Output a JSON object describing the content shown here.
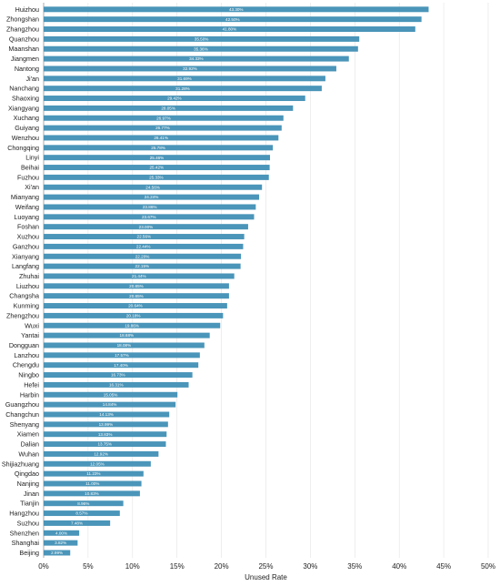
{
  "chart_data": {
    "type": "bar",
    "orientation": "horizontal",
    "title": "",
    "xlabel": "Unused Rate",
    "ylabel": "",
    "xlim": [
      0,
      50
    ],
    "x_ticks": [
      "0%",
      "5%",
      "10%",
      "15%",
      "20%",
      "25%",
      "30%",
      "35%",
      "40%",
      "45%",
      "50%"
    ],
    "grid": true,
    "bar_color": "#4a95b9",
    "categories": [
      "Huizhou",
      "Zhongshan",
      "Zhangzhou",
      "Quanzhou",
      "Maanshan",
      "Jiangmen",
      "Nantong",
      "Ji'an",
      "Nanchang",
      "Shaoxing",
      "Xiangyang",
      "Xuchang",
      "Guiyang",
      "Wenzhou",
      "Chongqing",
      "Linyi",
      "Beihai",
      "Fuzhou",
      "Xi'an",
      "Mianyang",
      "Weifang",
      "Luoyang",
      "Foshan",
      "Xuzhou",
      "Ganzhou",
      "Xianyang",
      "Langfang",
      "Zhuhai",
      "Liuzhou",
      "Changsha",
      "Kunming",
      "Zhengzhou",
      "Wuxi",
      "Yantai",
      "Dongguan",
      "Lanzhou",
      "Chengdu",
      "Ningbo",
      "Hefei",
      "Harbin",
      "Guangzhou",
      "Changchun",
      "Shenyang",
      "Xiamen",
      "Dalian",
      "Wuhan",
      "Shijiazhuang",
      "Qingdao",
      "Nanjing",
      "Jinan",
      "Tianjin",
      "Hangzhou",
      "Suzhou",
      "Shenzhen",
      "Shanghai",
      "Beijing"
    ],
    "values": [
      43.3,
      42.5,
      41.8,
      35.5,
      35.36,
      34.33,
      32.92,
      31.69,
      31.28,
      29.42,
      28.05,
      26.97,
      26.77,
      26.41,
      25.78,
      25.46,
      25.42,
      25.33,
      24.56,
      24.24,
      23.86,
      23.67,
      23.0,
      22.56,
      22.44,
      22.2,
      22.15,
      21.44,
      20.85,
      20.85,
      20.64,
      20.18,
      19.86,
      18.68,
      18.08,
      17.57,
      17.4,
      16.73,
      16.31,
      15.05,
      14.84,
      14.13,
      13.99,
      13.83,
      13.75,
      12.92,
      12.05,
      11.23,
      11.0,
      10.83,
      8.96,
      8.57,
      7.48,
      4.0,
      3.82,
      2.99
    ],
    "data_labels": [
      "43.30%",
      "42.50%",
      "41.80%",
      "35.50%",
      "35.36%",
      "34.33%",
      "32.92%",
      "31.69%",
      "31.28%",
      "29.42%",
      "28.05%",
      "26.97%",
      "26.77%",
      "26.41%",
      "25.78%",
      "25.46%",
      "25.42%",
      "25.33%",
      "24.56%",
      "24.24%",
      "23.86%",
      "23.67%",
      "23.00%",
      "22.56%",
      "22.44%",
      "22.20%",
      "22.15%",
      "21.44%",
      "20.85%",
      "20.85%",
      "20.64%",
      "20.18%",
      "19.86%",
      "18.68%",
      "18.08%",
      "17.57%",
      "17.40%",
      "16.73%",
      "16.31%",
      "15.05%",
      "14.84%",
      "14.13%",
      "13.99%",
      "13.83%",
      "13.75%",
      "12.92%",
      "12.05%",
      "11.23%",
      "11.00%",
      "10.83%",
      "8.96%",
      "8.57%",
      "7.48%",
      "4.00%",
      "3.82%",
      "2.99%"
    ]
  }
}
